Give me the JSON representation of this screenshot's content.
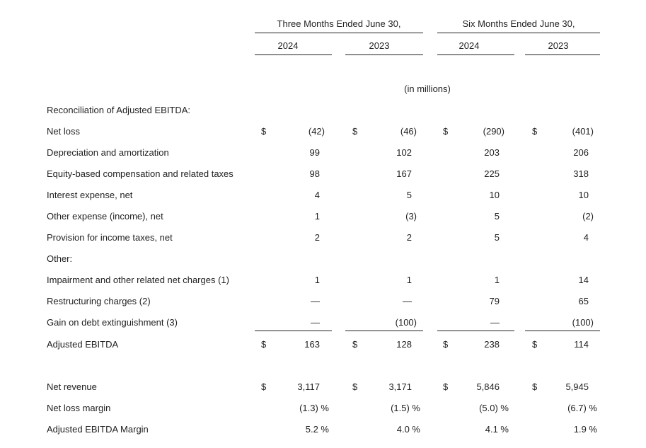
{
  "table": {
    "groups": [
      "Three Months Ended June 30,",
      "Six Months Ended June 30,"
    ],
    "years": [
      "2024",
      "2023",
      "2024",
      "2023"
    ],
    "unit": "(in millions)",
    "section": "Reconciliation of Adjusted EBITDA:",
    "rows": [
      {
        "label": "Net loss",
        "dollar": "$",
        "values": [
          "(42)",
          "(46)",
          "(290)",
          "(401)"
        ]
      },
      {
        "label": "Depreciation and amortization",
        "values": [
          "99",
          "102",
          "203",
          "206"
        ]
      },
      {
        "label": "Equity-based compensation and related taxes",
        "values": [
          "98",
          "167",
          "225",
          "318"
        ]
      },
      {
        "label": "Interest expense, net",
        "values": [
          "4",
          "5",
          "10",
          "10"
        ]
      },
      {
        "label": "Other expense (income), net",
        "values": [
          "1",
          "(3)",
          "5",
          "(2)"
        ]
      },
      {
        "label": "Provision for income taxes, net",
        "values": [
          "2",
          "2",
          "5",
          "4"
        ]
      },
      {
        "label": "Other:"
      },
      {
        "label": "Impairment and other related net charges (1)",
        "values": [
          "1",
          "1",
          "1",
          "14"
        ]
      },
      {
        "label": "Restructuring charges (2)",
        "values": [
          "—",
          "—",
          "79",
          "65"
        ]
      },
      {
        "label": "Gain on debt extinguishment (3)",
        "values": [
          "—",
          "(100)",
          "—",
          "(100)"
        ]
      },
      {
        "label": "Adjusted EBITDA",
        "dollar": "$",
        "values": [
          "163",
          "128",
          "238",
          "114"
        ]
      }
    ],
    "metrics": [
      {
        "label": "Net revenue",
        "dollar": "$",
        "values": [
          "3,117",
          "3,171",
          "5,846",
          "5,945"
        ]
      },
      {
        "label": "Net loss margin",
        "values": [
          "(1.3) %",
          "(1.5) %",
          "(5.0) %",
          "(6.7) %"
        ]
      },
      {
        "label": "Adjusted EBITDA Margin",
        "values": [
          "5.2 %",
          "4.0 %",
          "4.1 %",
          "1.9 %"
        ]
      }
    ]
  }
}
